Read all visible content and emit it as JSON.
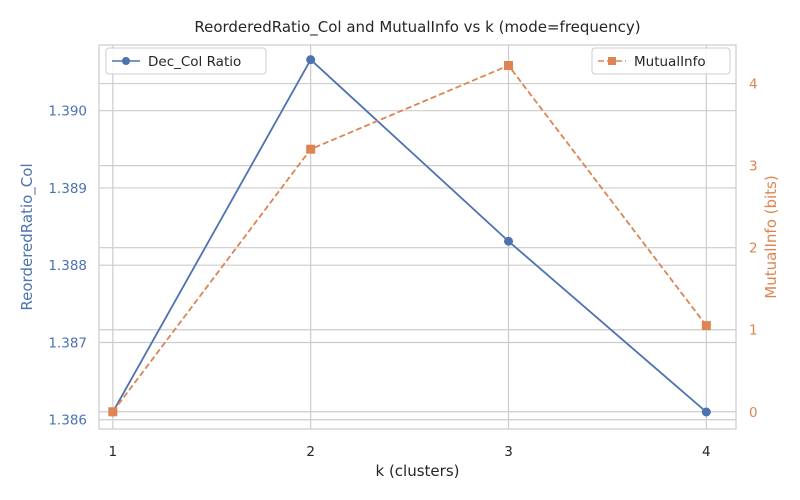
{
  "chart_data": {
    "type": "line",
    "title": "ReorderedRatio_Col and MutualInfo vs k (mode=frequency)",
    "xlabel": "k (clusters)",
    "x": [
      1,
      2,
      3,
      4
    ],
    "x_ticks": [
      "1",
      "2",
      "3",
      "4"
    ],
    "xlim": [
      0.93,
      4.15
    ],
    "left_axis": {
      "label": "ReorderedRatio_Col",
      "ylim": [
        1.38588,
        1.39085
      ],
      "ticks": [
        1.386,
        1.387,
        1.388,
        1.389,
        1.39
      ],
      "tick_labels": [
        "1.386",
        "1.387",
        "1.388",
        "1.389",
        "1.390"
      ],
      "color": "#4c72b0"
    },
    "right_axis": {
      "label": "MutualInfo (bits)",
      "ylim": [
        -0.21,
        4.47
      ],
      "ticks": [
        0,
        1,
        2,
        3,
        4
      ],
      "tick_labels": [
        "0",
        "1",
        "2",
        "3",
        "4"
      ],
      "color": "#dd8452"
    },
    "series": [
      {
        "name": "Dec_Col Ratio",
        "axis": "left",
        "values": [
          1.3861,
          1.39066,
          1.38831,
          1.3861
        ],
        "color": "#4c72b0",
        "line": "solid",
        "marker": "circle"
      },
      {
        "name": "MutualInfo",
        "axis": "right",
        "values": [
          0.0,
          3.2,
          4.22,
          1.05
        ],
        "color": "#dd8452",
        "line": "dashed",
        "marker": "square"
      }
    ],
    "grid": true,
    "legend_left": "top-left",
    "legend_right": "top-right"
  }
}
